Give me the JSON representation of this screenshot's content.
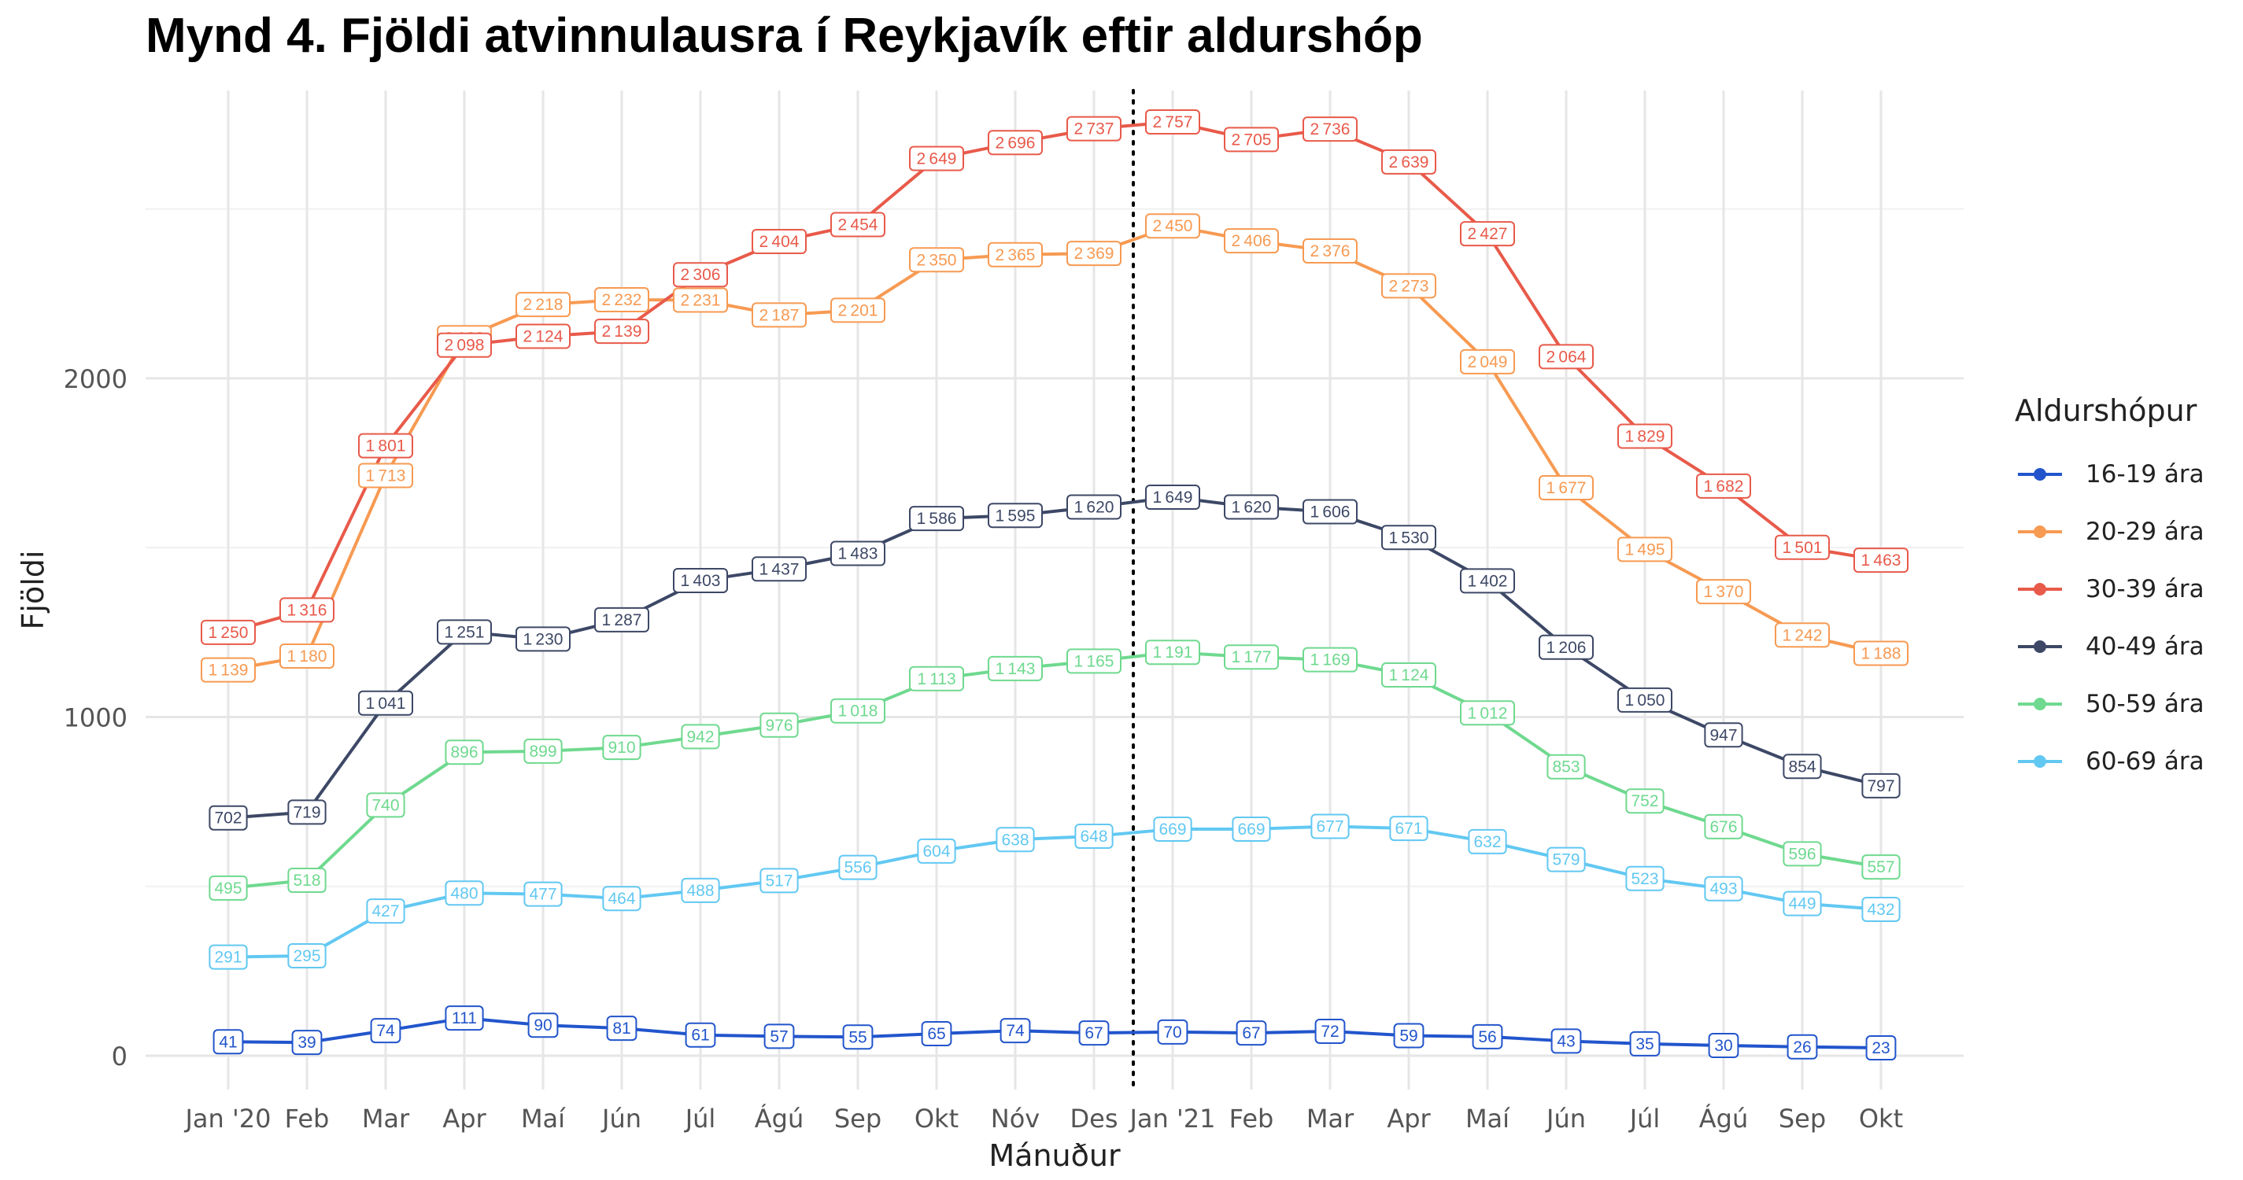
{
  "title": "Mynd 4. Fjöldi atvinnulausra í Reykjavík eftir aldurshóp",
  "chart_data": {
    "type": "line",
    "title": "Mynd 4. Fjöldi atvinnulausra í Reykjavík eftir aldurshóp",
    "xlabel": "Mánuður",
    "ylabel": "Fjöldi",
    "categories": [
      "Jan '20",
      "Feb",
      "Mar",
      "Apr",
      "Maí",
      "Jún",
      "Júl",
      "Ágú",
      "Sep",
      "Okt",
      "Nóv",
      "Des",
      "Jan '21",
      "Feb",
      "Mar",
      "Apr",
      "Maí",
      "Jún",
      "Júl",
      "Ágú",
      "Sep",
      "Okt"
    ],
    "y_ticks": [
      0,
      1000,
      2000
    ],
    "ylim": [
      -100,
      2850
    ],
    "grid": true,
    "legend_title": "Aldurshópur",
    "legend_position": "right",
    "divider_between": [
      "Des",
      "Jan '21"
    ],
    "series": [
      {
        "name": "16-19 ára",
        "color": "#2255cc",
        "values": [
          41,
          39,
          74,
          111,
          90,
          81,
          61,
          57,
          55,
          65,
          74,
          67,
          70,
          67,
          72,
          59,
          56,
          43,
          35,
          30,
          26,
          23
        ]
      },
      {
        "name": "20-29 ára",
        "color": "#f79a52",
        "values": [
          1139,
          1180,
          1713,
          2120,
          2218,
          2232,
          2231,
          2187,
          2201,
          2350,
          2365,
          2369,
          2450,
          2406,
          2376,
          2273,
          2049,
          1677,
          1495,
          1370,
          1242,
          1188
        ]
      },
      {
        "name": "30-39 ára",
        "color": "#e85a4a",
        "values": [
          1250,
          1316,
          1801,
          2098,
          2124,
          2139,
          2306,
          2404,
          2454,
          2649,
          2696,
          2737,
          2757,
          2705,
          2736,
          2639,
          2427,
          2064,
          1829,
          1682,
          1501,
          1463
        ]
      },
      {
        "name": "40-49 ára",
        "color": "#3d4866",
        "values": [
          702,
          719,
          1041,
          1251,
          1230,
          1287,
          1403,
          1437,
          1483,
          1586,
          1595,
          1620,
          1649,
          1620,
          1606,
          1530,
          1402,
          1206,
          1050,
          947,
          854,
          797
        ]
      },
      {
        "name": "50-59 ára",
        "color": "#6fd98f",
        "values": [
          495,
          518,
          740,
          896,
          899,
          910,
          942,
          976,
          1018,
          1113,
          1143,
          1165,
          1191,
          1177,
          1169,
          1124,
          1012,
          853,
          752,
          676,
          596,
          557
        ]
      },
      {
        "name": "60-69 ára",
        "color": "#62c8f2",
        "values": [
          291,
          295,
          427,
          480,
          477,
          464,
          488,
          517,
          556,
          604,
          638,
          648,
          669,
          669,
          677,
          671,
          632,
          579,
          523,
          493,
          449,
          432
        ]
      }
    ]
  }
}
